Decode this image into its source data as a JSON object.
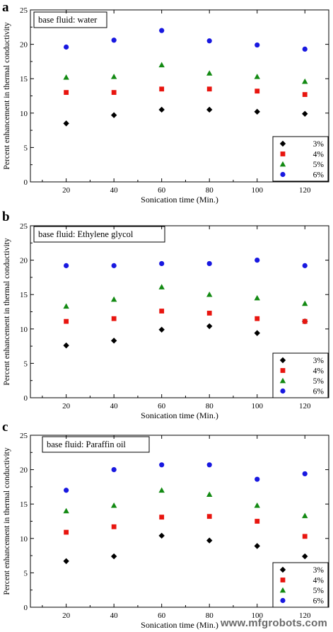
{
  "watermark": "www.mfgrobots.com",
  "chart_data": [
    {
      "type": "scatter",
      "panel_label": "a",
      "base_fluid_label": "base fluid: water",
      "xlabel": "Sonication time (Min.)",
      "ylabel": "Percent enhancement in thermal conductivity",
      "xlim": [
        5,
        130
      ],
      "ylim": [
        0,
        25
      ],
      "xticks": [
        20,
        40,
        60,
        80,
        100,
        120
      ],
      "yticks": [
        0,
        5,
        10,
        15,
        20,
        25
      ],
      "x": [
        20,
        40,
        60,
        80,
        100,
        120
      ],
      "legend_position": "bottom-right",
      "series": [
        {
          "name": "3%",
          "marker": "diamond",
          "color": "#000000",
          "values": [
            8.5,
            9.7,
            10.5,
            10.5,
            10.2,
            9.9
          ]
        },
        {
          "name": "4%",
          "marker": "square",
          "color": "#e8150f",
          "values": [
            13.0,
            13.0,
            13.5,
            13.5,
            13.2,
            12.7
          ]
        },
        {
          "name": "5%",
          "marker": "triangle",
          "color": "#138a13",
          "values": [
            15.2,
            15.3,
            17.0,
            15.8,
            15.3,
            14.6
          ]
        },
        {
          "name": "6%",
          "marker": "circle",
          "color": "#1818e0",
          "values": [
            19.6,
            20.6,
            22.0,
            20.5,
            19.9,
            19.3
          ]
        }
      ]
    },
    {
      "type": "scatter",
      "panel_label": "b",
      "base_fluid_label": "base fluid: Ethylene glycol",
      "xlabel": "Sonication time (Min.)",
      "ylabel": "Percent enhancement in thermal conductivity",
      "xlim": [
        5,
        130
      ],
      "ylim": [
        0,
        25
      ],
      "xticks": [
        20,
        40,
        60,
        80,
        100,
        120
      ],
      "yticks": [
        0,
        5,
        10,
        15,
        20,
        25
      ],
      "x": [
        20,
        40,
        60,
        80,
        100,
        120
      ],
      "legend_position": "bottom-right",
      "series": [
        {
          "name": "3%",
          "marker": "diamond",
          "color": "#000000",
          "values": [
            7.6,
            8.3,
            9.9,
            10.4,
            9.4,
            11.1
          ]
        },
        {
          "name": "4%",
          "marker": "square",
          "color": "#e8150f",
          "values": [
            11.1,
            11.5,
            12.6,
            12.3,
            11.5,
            11.1
          ]
        },
        {
          "name": "5%",
          "marker": "triangle",
          "color": "#138a13",
          "values": [
            13.3,
            14.3,
            16.1,
            15.0,
            14.5,
            13.7
          ]
        },
        {
          "name": "6%",
          "marker": "circle",
          "color": "#1818e0",
          "values": [
            19.2,
            19.2,
            19.5,
            19.5,
            20.0,
            19.2
          ]
        }
      ]
    },
    {
      "type": "scatter",
      "panel_label": "c",
      "base_fluid_label": "base fluid: Paraffin oil",
      "xlabel": "Sonication time (Min.)",
      "ylabel": "Percent enhancement in thermal conductivity",
      "xlim": [
        5,
        130
      ],
      "ylim": [
        0,
        25
      ],
      "xticks": [
        20,
        40,
        60,
        80,
        100,
        120
      ],
      "yticks": [
        0,
        5,
        10,
        15,
        20,
        25
      ],
      "x": [
        20,
        40,
        60,
        80,
        100,
        120
      ],
      "legend_position": "bottom-right",
      "series": [
        {
          "name": "3%",
          "marker": "diamond",
          "color": "#000000",
          "values": [
            6.7,
            7.4,
            10.4,
            9.7,
            8.9,
            7.4
          ]
        },
        {
          "name": "4%",
          "marker": "square",
          "color": "#e8150f",
          "values": [
            10.9,
            11.7,
            13.1,
            13.2,
            12.5,
            10.3
          ]
        },
        {
          "name": "5%",
          "marker": "triangle",
          "color": "#138a13",
          "values": [
            14.0,
            14.8,
            17.0,
            16.4,
            14.8,
            13.3
          ]
        },
        {
          "name": "6%",
          "marker": "circle",
          "color": "#1818e0",
          "values": [
            17.0,
            20.0,
            20.7,
            20.7,
            18.6,
            19.4
          ]
        }
      ]
    }
  ]
}
